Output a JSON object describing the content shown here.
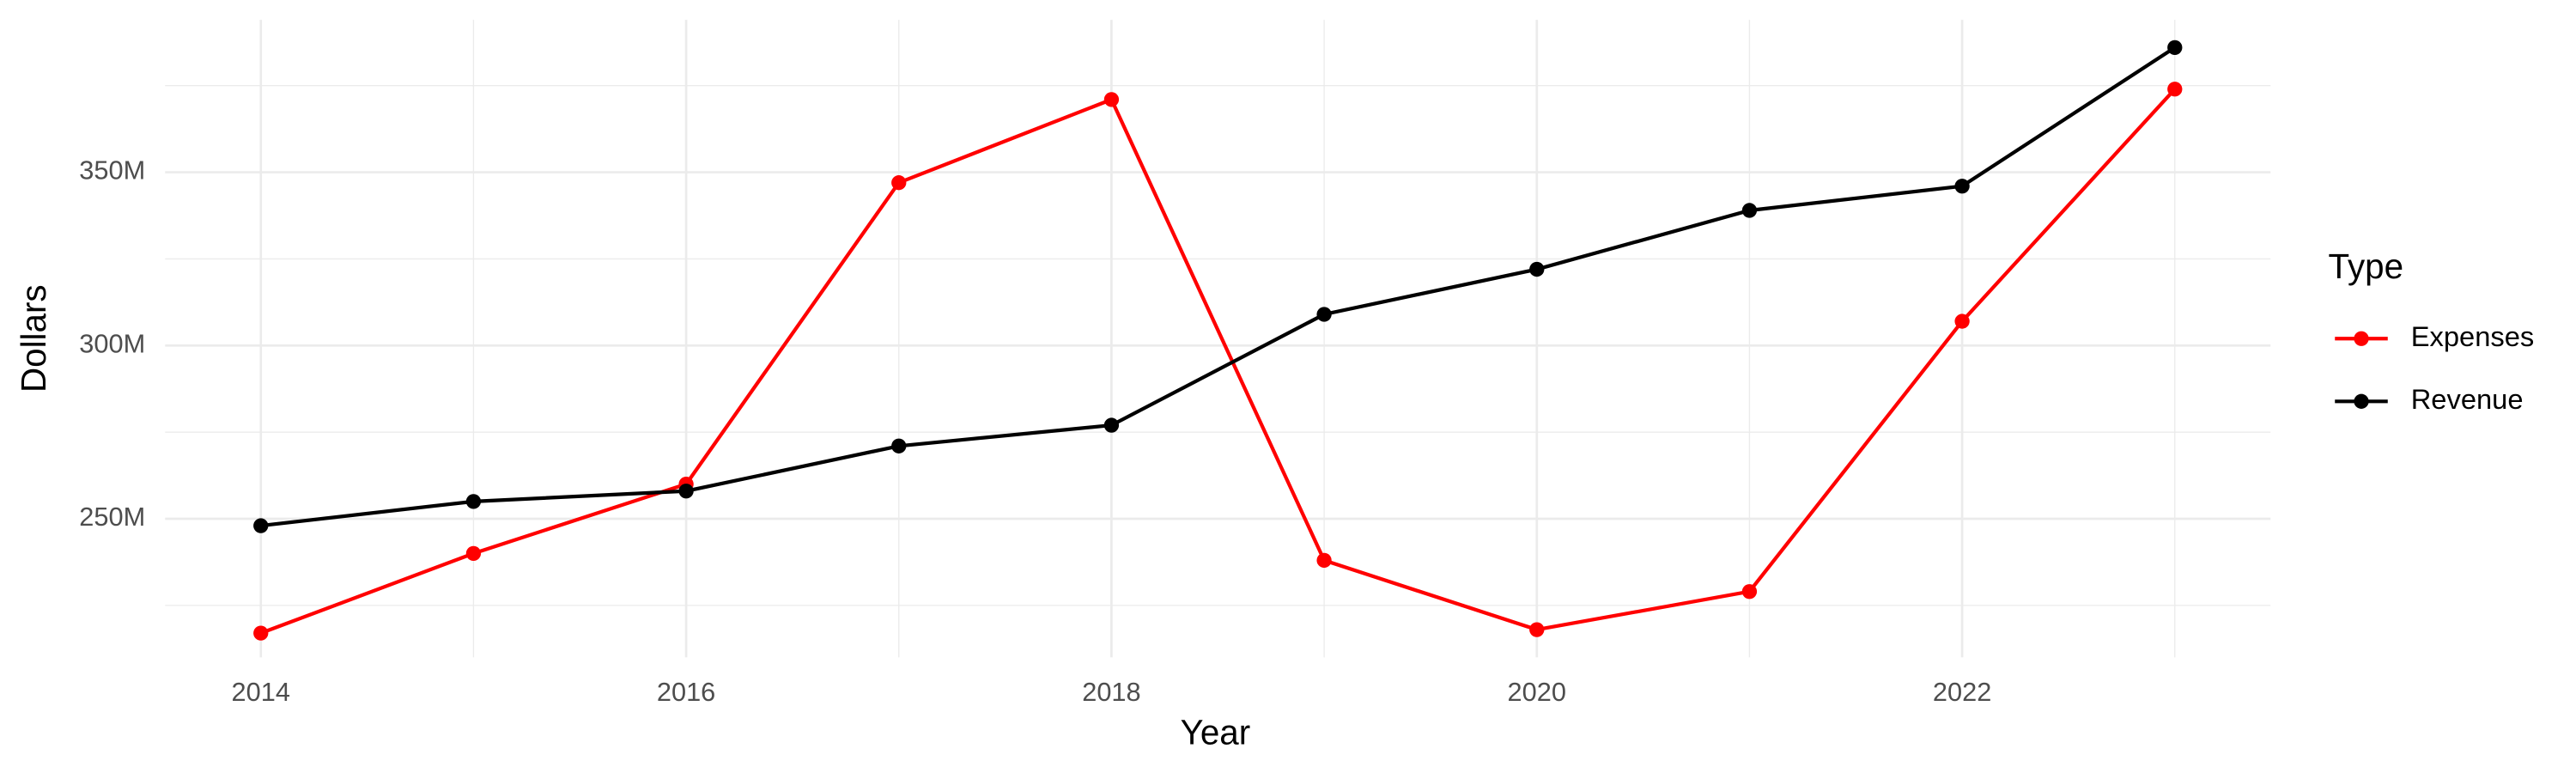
{
  "chart_data": {
    "type": "line",
    "x_label": "Year",
    "y_label": "Dollars",
    "legend_title": "Type",
    "x": [
      2014,
      2015,
      2016,
      2017,
      2018,
      2019,
      2020,
      2021,
      2022,
      2023
    ],
    "series": [
      {
        "name": "Expenses",
        "color": "#ff0000",
        "values": [
          217000000,
          240000000,
          260000000,
          347000000,
          371000000,
          238000000,
          218000000,
          229000000,
          307000000,
          374000000
        ]
      },
      {
        "name": "Revenue",
        "color": "#000000",
        "values": [
          248000000,
          255000000,
          258000000,
          271000000,
          277000000,
          309000000,
          322000000,
          339000000,
          346000000,
          386000000
        ]
      }
    ],
    "xlim": [
      2013.55,
      2023.45
    ],
    "xticks": [
      2014,
      2016,
      2018,
      2020,
      2022
    ],
    "ylim": [
      210000000,
      394000000
    ],
    "yticks": [
      {
        "value": 250000000,
        "label": "250M"
      },
      {
        "value": 300000000,
        "label": "300M"
      },
      {
        "value": 350000000,
        "label": "350M"
      }
    ],
    "grid": true,
    "legend": "right"
  }
}
